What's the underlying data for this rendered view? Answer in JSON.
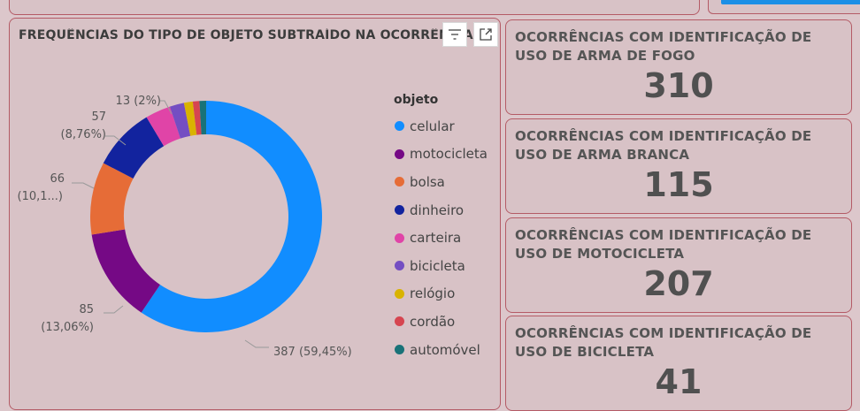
{
  "chart_panel": {
    "title": "FREQUÊNCIAS DO TIPO DE OBJETO SUBTRAÍDO NA OCORRÊNCIA",
    "legend_title": "objeto"
  },
  "chart_data": {
    "type": "donut",
    "title": "FREQUÊNCIAS DO TIPO DE OBJETO SUBTRAÍDO NA OCORRÊNCIA",
    "legend_title": "objeto",
    "categories": [
      "celular",
      "motocicleta",
      "bolsa",
      "dinheiro",
      "carteira",
      "bicicleta",
      "relógio",
      "cordão",
      "automóvel"
    ],
    "values": [
      387,
      85,
      66,
      57,
      23,
      13,
      8,
      6,
      6
    ],
    "colors": [
      "#118dff",
      "#750985",
      "#e66c37",
      "#12239e",
      "#e044a7",
      "#744ec2",
      "#d9b300",
      "#d64550",
      "#197278"
    ],
    "data_labels": [
      {
        "category": "celular",
        "text": "387 (59,45%)"
      },
      {
        "category": "motocicleta",
        "line1": "85",
        "line2": "(13,06%)"
      },
      {
        "category": "bolsa",
        "line1": "66",
        "line2": "(10,1...)"
      },
      {
        "category": "dinheiro",
        "line1": "57",
        "line2": "(8,76%)"
      },
      {
        "category": "bicicleta",
        "text": "13 (2%)"
      }
    ],
    "legend_position": "right"
  },
  "cards": [
    {
      "title": "OCORRÊNCIAS COM IDENTIFICAÇÃO DE USO DE ARMA DE FOGO",
      "value": "310"
    },
    {
      "title": "OCORRÊNCIAS COM IDENTIFICAÇÃO DE USO DE ARMA BRANCA",
      "value": "115"
    },
    {
      "title": "OCORRÊNCIAS COM IDENTIFICAÇÃO DE USO DE MOTOCICLETA",
      "value": "207"
    },
    {
      "title": "OCORRÊNCIAS COM IDENTIFICAÇÃO DE USO DE BICICLETA",
      "value": "41"
    }
  ]
}
